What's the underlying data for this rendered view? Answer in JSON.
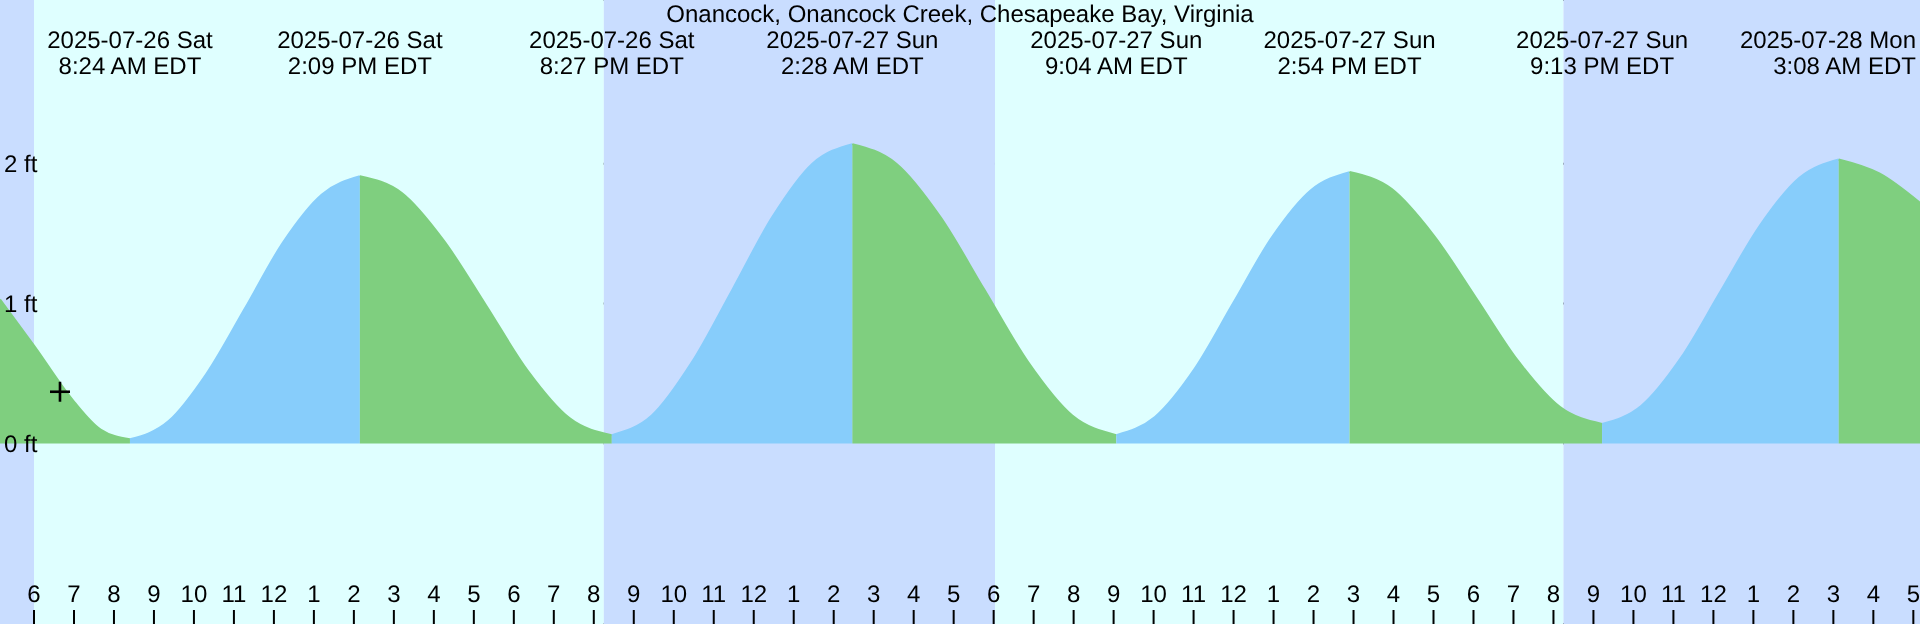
{
  "chart_data": {
    "type": "area",
    "title": "Onancock, Onancock Creek, Chesapeake Bay, Virginia",
    "series": [
      {
        "color": "#7fcf7f",
        "x": [
          "2025-07-26T05:09",
          "2025-07-26T06:00",
          "2025-07-26T07:00",
          "2025-07-26T07:40",
          "2025-07-26T08:24"
        ],
        "values": [
          1.03,
          0.7,
          0.3,
          0.1,
          0.03
        ]
      },
      {
        "color": "#87cdfb",
        "x": [
          "2025-07-26T08:24",
          "2025-07-26T09:22",
          "2025-07-26T10:19",
          "2025-07-26T11:17",
          "2025-07-26T12:14",
          "2025-07-26T13:12",
          "2025-07-26T14:09"
        ],
        "values": [
          0.03,
          0.16,
          0.5,
          0.97,
          1.44,
          1.78,
          1.91
        ]
      },
      {
        "color": "#7fcf7f",
        "x": [
          "2025-07-26T14:09",
          "2025-07-26T15:12",
          "2025-07-26T16:15",
          "2025-07-26T17:18",
          "2025-07-26T18:21",
          "2025-07-26T19:24",
          "2025-07-26T20:27"
        ],
        "values": [
          1.91,
          1.79,
          1.45,
          0.99,
          0.52,
          0.18,
          0.06
        ]
      },
      {
        "color": "#87cdfb",
        "x": [
          "2025-07-26T20:27",
          "2025-07-26T21:27",
          "2025-07-26T22:27",
          "2025-07-26T23:28",
          "2025-07-27T00:28",
          "2025-07-27T01:28",
          "2025-07-27T02:28"
        ],
        "values": [
          0.06,
          0.2,
          0.58,
          1.1,
          1.62,
          2.0,
          2.14
        ]
      },
      {
        "color": "#7fcf7f",
        "x": [
          "2025-07-27T02:28",
          "2025-07-27T03:34",
          "2025-07-27T04:40",
          "2025-07-27T05:46",
          "2025-07-27T06:52",
          "2025-07-27T07:58",
          "2025-07-27T09:04"
        ],
        "values": [
          2.14,
          2.0,
          1.62,
          1.1,
          0.58,
          0.2,
          0.06
        ]
      },
      {
        "color": "#87cdfb",
        "x": [
          "2025-07-27T09:04",
          "2025-07-27T10:02",
          "2025-07-27T11:01",
          "2025-07-27T11:59",
          "2025-07-27T12:57",
          "2025-07-27T13:56",
          "2025-07-27T14:54"
        ],
        "values": [
          0.06,
          0.19,
          0.53,
          1.0,
          1.47,
          1.81,
          1.94
        ]
      },
      {
        "color": "#7fcf7f",
        "x": [
          "2025-07-27T14:54",
          "2025-07-27T15:57",
          "2025-07-27T17:00",
          "2025-07-27T18:04",
          "2025-07-27T19:07",
          "2025-07-27T20:10",
          "2025-07-27T21:13"
        ],
        "values": [
          1.94,
          1.82,
          1.49,
          1.04,
          0.59,
          0.26,
          0.14
        ]
      },
      {
        "color": "#87cdfb",
        "x": [
          "2025-07-27T21:13",
          "2025-07-27T22:12",
          "2025-07-27T23:11",
          "2025-07-28T00:11",
          "2025-07-28T01:10",
          "2025-07-28T02:09",
          "2025-07-28T03:08"
        ],
        "values": [
          0.14,
          0.27,
          0.61,
          1.09,
          1.56,
          1.9,
          2.03
        ]
      },
      {
        "color": "#7fcf7f",
        "x": [
          "2025-07-28T03:08",
          "2025-07-28T04:09",
          "2025-07-28T05:10"
        ],
        "values": [
          2.03,
          1.93,
          1.72
        ]
      },
      {
        "type": "scatter",
        "marker": "cross",
        "color": "#000000",
        "x": [
          "2025-07-26T06:39"
        ],
        "values": [
          0.37
        ]
      }
    ],
    "xlim": [
      "2025-07-26T05:09",
      "2025-07-28T05:10"
    ],
    "xticks": [
      {
        "value": "2025-07-26T06:00",
        "label": "6"
      },
      {
        "value": "2025-07-26T07:00",
        "label": "7"
      },
      {
        "value": "2025-07-26T08:00",
        "label": "8"
      },
      {
        "value": "2025-07-26T09:00",
        "label": "9"
      },
      {
        "value": "2025-07-26T10:00",
        "label": "10"
      },
      {
        "value": "2025-07-26T11:00",
        "label": "11"
      },
      {
        "value": "2025-07-26T12:00",
        "label": "12"
      },
      {
        "value": "2025-07-26T13:00",
        "label": "1"
      },
      {
        "value": "2025-07-26T14:00",
        "label": "2"
      },
      {
        "value": "2025-07-26T15:00",
        "label": "3"
      },
      {
        "value": "2025-07-26T16:00",
        "label": "4"
      },
      {
        "value": "2025-07-26T17:00",
        "label": "5"
      },
      {
        "value": "2025-07-26T18:00",
        "label": "6"
      },
      {
        "value": "2025-07-26T19:00",
        "label": "7"
      },
      {
        "value": "2025-07-26T20:00",
        "label": "8"
      },
      {
        "value": "2025-07-26T21:00",
        "label": "9"
      },
      {
        "value": "2025-07-26T22:00",
        "label": "10"
      },
      {
        "value": "2025-07-26T23:00",
        "label": "11"
      },
      {
        "value": "2025-07-27T00:00",
        "label": "12"
      },
      {
        "value": "2025-07-27T01:00",
        "label": "1"
      },
      {
        "value": "2025-07-27T02:00",
        "label": "2"
      },
      {
        "value": "2025-07-27T03:00",
        "label": "3"
      },
      {
        "value": "2025-07-27T04:00",
        "label": "4"
      },
      {
        "value": "2025-07-27T05:00",
        "label": "5"
      },
      {
        "value": "2025-07-27T06:00",
        "label": "6"
      },
      {
        "value": "2025-07-27T07:00",
        "label": "7"
      },
      {
        "value": "2025-07-27T08:00",
        "label": "8"
      },
      {
        "value": "2025-07-27T09:00",
        "label": "9"
      },
      {
        "value": "2025-07-27T10:00",
        "label": "10"
      },
      {
        "value": "2025-07-27T11:00",
        "label": "11"
      },
      {
        "value": "2025-07-27T12:00",
        "label": "12"
      },
      {
        "value": "2025-07-27T13:00",
        "label": "1"
      },
      {
        "value": "2025-07-27T14:00",
        "label": "2"
      },
      {
        "value": "2025-07-27T15:00",
        "label": "3"
      },
      {
        "value": "2025-07-27T16:00",
        "label": "4"
      },
      {
        "value": "2025-07-27T17:00",
        "label": "5"
      },
      {
        "value": "2025-07-27T18:00",
        "label": "6"
      },
      {
        "value": "2025-07-27T19:00",
        "label": "7"
      },
      {
        "value": "2025-07-27T20:00",
        "label": "8"
      },
      {
        "value": "2025-07-27T21:00",
        "label": "9"
      },
      {
        "value": "2025-07-27T22:00",
        "label": "10"
      },
      {
        "value": "2025-07-27T23:00",
        "label": "11"
      },
      {
        "value": "2025-07-28T00:00",
        "label": "12"
      },
      {
        "value": "2025-07-28T01:00",
        "label": "1"
      },
      {
        "value": "2025-07-28T02:00",
        "label": "2"
      },
      {
        "value": "2025-07-28T03:00",
        "label": "3"
      },
      {
        "value": "2025-07-28T04:00",
        "label": "4"
      },
      {
        "value": "2025-07-28T05:00",
        "label": "5"
      }
    ],
    "ylim": [
      -1.29,
      3.17
    ],
    "yticks": [
      {
        "value": 0,
        "label": "0 ft"
      },
      {
        "value": 1,
        "label": "1 ft"
      },
      {
        "value": 2,
        "label": "2 ft"
      }
    ],
    "grid": "y",
    "bands": [
      {
        "axis": "x",
        "from": "2025-07-26T05:09",
        "to": "2025-07-26T06:00",
        "color": "#c9ddff"
      },
      {
        "axis": "x",
        "from": "2025-07-26T06:00",
        "to": "2025-07-26T20:15",
        "color": "#dfffff"
      },
      {
        "axis": "x",
        "from": "2025-07-26T20:15",
        "to": "2025-07-27T06:02",
        "color": "#c9ddff"
      },
      {
        "axis": "x",
        "from": "2025-07-27T06:02",
        "to": "2025-07-27T20:15",
        "color": "#dfffff"
      },
      {
        "axis": "x",
        "from": "2025-07-27T20:15",
        "to": "2025-07-28T05:10",
        "color": "#c9ddff"
      }
    ],
    "annotations": [
      "2025-07-26 Sat\n8:24 AM EDT",
      "2025-07-26 Sat\n2:09 PM EDT",
      "2025-07-26 Sat\n8:27 PM EDT",
      "2025-07-27 Sun\n2:28 AM EDT",
      "2025-07-27 Sun\n9:04 AM EDT",
      "2025-07-27 Sun\n2:54 PM EDT",
      "2025-07-27 Sun\n9:13 PM EDT",
      "2025-07-28 Mon\n3:08 AM EDT"
    ]
  }
}
